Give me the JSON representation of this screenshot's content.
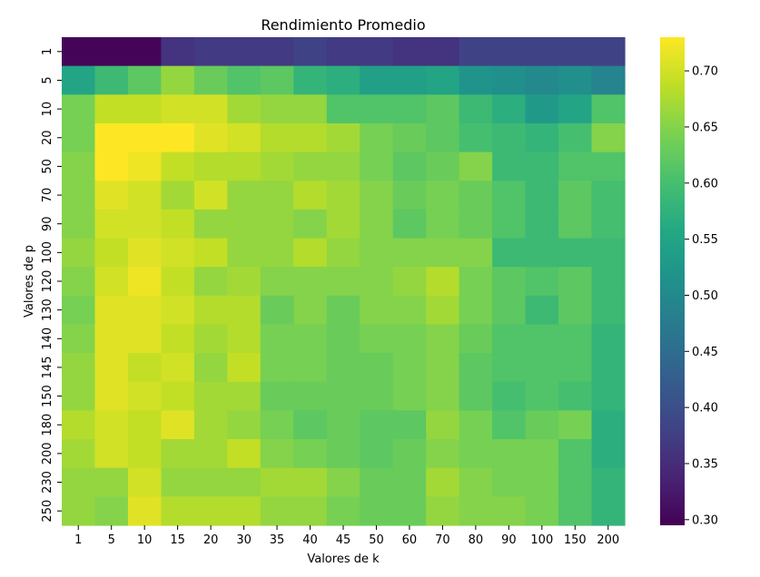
{
  "chart_data": {
    "type": "heatmap",
    "title": "Rendimiento Promedio",
    "xlabel": "Valores de k",
    "ylabel": "Valores de p",
    "x_categories": [
      "1",
      "5",
      "10",
      "15",
      "20",
      "30",
      "35",
      "40",
      "45",
      "50",
      "60",
      "70",
      "80",
      "90",
      "100",
      "150",
      "200"
    ],
    "y_categories": [
      "1",
      "5",
      "10",
      "20",
      "50",
      "70",
      "90",
      "100",
      "120",
      "130",
      "140",
      "145",
      "150",
      "180",
      "200",
      "230",
      "250"
    ],
    "values": [
      [
        0.3,
        0.3,
        0.3,
        0.36,
        0.37,
        0.37,
        0.37,
        0.38,
        0.37,
        0.37,
        0.36,
        0.36,
        0.38,
        0.38,
        0.38,
        0.38,
        0.38
      ],
      [
        0.55,
        0.59,
        0.62,
        0.66,
        0.63,
        0.61,
        0.62,
        0.58,
        0.57,
        0.54,
        0.54,
        0.55,
        0.52,
        0.51,
        0.5,
        0.51,
        0.49
      ],
      [
        0.64,
        0.69,
        0.69,
        0.7,
        0.7,
        0.67,
        0.66,
        0.66,
        0.61,
        0.61,
        0.61,
        0.62,
        0.59,
        0.57,
        0.53,
        0.55,
        0.61
      ],
      [
        0.64,
        0.73,
        0.73,
        0.73,
        0.71,
        0.7,
        0.68,
        0.68,
        0.67,
        0.64,
        0.63,
        0.62,
        0.6,
        0.59,
        0.58,
        0.6,
        0.65
      ],
      [
        0.65,
        0.73,
        0.72,
        0.69,
        0.68,
        0.68,
        0.67,
        0.66,
        0.66,
        0.64,
        0.62,
        0.63,
        0.65,
        0.59,
        0.59,
        0.61,
        0.61
      ],
      [
        0.65,
        0.71,
        0.7,
        0.67,
        0.7,
        0.66,
        0.66,
        0.68,
        0.67,
        0.65,
        0.63,
        0.64,
        0.63,
        0.61,
        0.59,
        0.62,
        0.6
      ],
      [
        0.65,
        0.7,
        0.7,
        0.69,
        0.66,
        0.66,
        0.66,
        0.65,
        0.67,
        0.65,
        0.62,
        0.64,
        0.63,
        0.61,
        0.59,
        0.62,
        0.6
      ],
      [
        0.66,
        0.69,
        0.71,
        0.7,
        0.69,
        0.66,
        0.66,
        0.68,
        0.66,
        0.65,
        0.65,
        0.65,
        0.65,
        0.59,
        0.59,
        0.59,
        0.59
      ],
      [
        0.65,
        0.7,
        0.72,
        0.69,
        0.66,
        0.67,
        0.65,
        0.65,
        0.65,
        0.65,
        0.66,
        0.68,
        0.64,
        0.62,
        0.61,
        0.62,
        0.59
      ],
      [
        0.64,
        0.71,
        0.71,
        0.7,
        0.68,
        0.68,
        0.63,
        0.65,
        0.63,
        0.65,
        0.65,
        0.67,
        0.64,
        0.62,
        0.59,
        0.62,
        0.59
      ],
      [
        0.65,
        0.71,
        0.71,
        0.69,
        0.67,
        0.68,
        0.64,
        0.64,
        0.63,
        0.64,
        0.64,
        0.65,
        0.63,
        0.61,
        0.61,
        0.61,
        0.58
      ],
      [
        0.66,
        0.71,
        0.69,
        0.7,
        0.66,
        0.69,
        0.64,
        0.64,
        0.63,
        0.63,
        0.64,
        0.65,
        0.62,
        0.61,
        0.61,
        0.61,
        0.58
      ],
      [
        0.66,
        0.71,
        0.7,
        0.69,
        0.67,
        0.67,
        0.63,
        0.63,
        0.63,
        0.63,
        0.64,
        0.65,
        0.62,
        0.6,
        0.61,
        0.6,
        0.58
      ],
      [
        0.68,
        0.7,
        0.69,
        0.71,
        0.67,
        0.66,
        0.64,
        0.62,
        0.63,
        0.62,
        0.62,
        0.66,
        0.64,
        0.61,
        0.63,
        0.64,
        0.57
      ],
      [
        0.67,
        0.7,
        0.69,
        0.67,
        0.67,
        0.69,
        0.65,
        0.64,
        0.63,
        0.62,
        0.63,
        0.65,
        0.64,
        0.64,
        0.64,
        0.61,
        0.57
      ],
      [
        0.66,
        0.66,
        0.7,
        0.66,
        0.66,
        0.66,
        0.67,
        0.67,
        0.65,
        0.63,
        0.63,
        0.67,
        0.65,
        0.64,
        0.64,
        0.61,
        0.58
      ],
      [
        0.66,
        0.65,
        0.71,
        0.68,
        0.68,
        0.68,
        0.66,
        0.66,
        0.64,
        0.63,
        0.63,
        0.66,
        0.65,
        0.65,
        0.64,
        0.61,
        0.58
      ]
    ],
    "colorbar": {
      "colormap": "viridis",
      "vmin": 0.295,
      "vmax": 0.73,
      "ticks": [
        "0.30",
        "0.35",
        "0.40",
        "0.45",
        "0.50",
        "0.55",
        "0.60",
        "0.65",
        "0.70"
      ]
    }
  }
}
